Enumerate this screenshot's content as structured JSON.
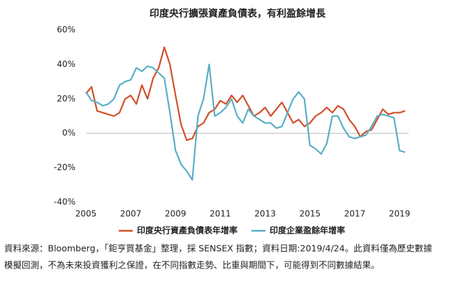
{
  "chart_data": {
    "type": "line",
    "title": "印度央行擴張資產負債表，有利盈餘增長",
    "x": [
      2005.0,
      2005.25,
      2005.5,
      2005.75,
      2006.0,
      2006.25,
      2006.5,
      2006.75,
      2007.0,
      2007.25,
      2007.5,
      2007.75,
      2008.0,
      2008.25,
      2008.5,
      2008.75,
      2009.0,
      2009.25,
      2009.5,
      2009.75,
      2010.0,
      2010.25,
      2010.5,
      2010.75,
      2011.0,
      2011.25,
      2011.5,
      2011.75,
      2012.0,
      2012.25,
      2012.5,
      2012.75,
      2013.0,
      2013.25,
      2013.5,
      2013.75,
      2014.0,
      2014.25,
      2014.5,
      2014.75,
      2015.0,
      2015.25,
      2015.5,
      2015.75,
      2016.0,
      2016.25,
      2016.5,
      2016.75,
      2017.0,
      2017.25,
      2017.5,
      2017.75,
      2018.0,
      2018.25,
      2018.5,
      2018.75,
      2019.0,
      2019.25
    ],
    "series": [
      {
        "name": "印度央行資產負債表年增率",
        "color": "#d0502a",
        "values": [
          23,
          27,
          13,
          12,
          11,
          10,
          12,
          20,
          22,
          17,
          28,
          20,
          32,
          38,
          50,
          40,
          22,
          5,
          -4,
          -3,
          4,
          6,
          12,
          14,
          19,
          17,
          22,
          18,
          22,
          16,
          10,
          12,
          15,
          10,
          14,
          18,
          12,
          6,
          8,
          4,
          6,
          10,
          12,
          15,
          12,
          16,
          14,
          8,
          4,
          -2,
          1,
          2,
          8,
          14,
          11,
          12,
          12,
          13
        ]
      },
      {
        "name": "印度企業盈餘年增率",
        "color": "#5aaec6",
        "values": [
          24,
          19,
          18,
          16,
          17,
          20,
          28,
          30,
          31,
          38,
          36,
          39,
          38,
          35,
          32,
          12,
          -10,
          -18,
          -22,
          -27,
          10,
          20,
          40,
          10,
          12,
          15,
          20,
          10,
          6,
          14,
          10,
          8,
          6,
          6,
          3,
          4,
          12,
          20,
          24,
          20,
          -7,
          -9,
          -12,
          -6,
          10,
          10,
          3,
          -2,
          -3,
          -2,
          -1,
          4,
          10,
          11,
          10,
          9,
          -10,
          -11
        ]
      }
    ],
    "xlim": [
      2005,
      2019
    ],
    "xticks": [
      2005,
      2007,
      2009,
      2011,
      2013,
      2015,
      2017,
      2019
    ],
    "ylim": [
      -40,
      60
    ],
    "yticks": [
      {
        "value": -40,
        "label": "-40%"
      },
      {
        "value": -20,
        "label": "-20%"
      },
      {
        "value": 0,
        "label": "0%"
      },
      {
        "value": 20,
        "label": "20%"
      },
      {
        "value": 40,
        "label": "40%"
      },
      {
        "value": 60,
        "label": "60%"
      }
    ],
    "grid": false
  },
  "notes": [
    "資料來源：Bloomberg，「鉅亨買基金」整理，採 SENSEX 指數；資料日期:2019/4/24。此資料僅為歷史數據",
    "模擬回測，不為未來投資獲利之保證，在不同指數走勢、比重與期間下，可能得到不同數據結果。"
  ]
}
